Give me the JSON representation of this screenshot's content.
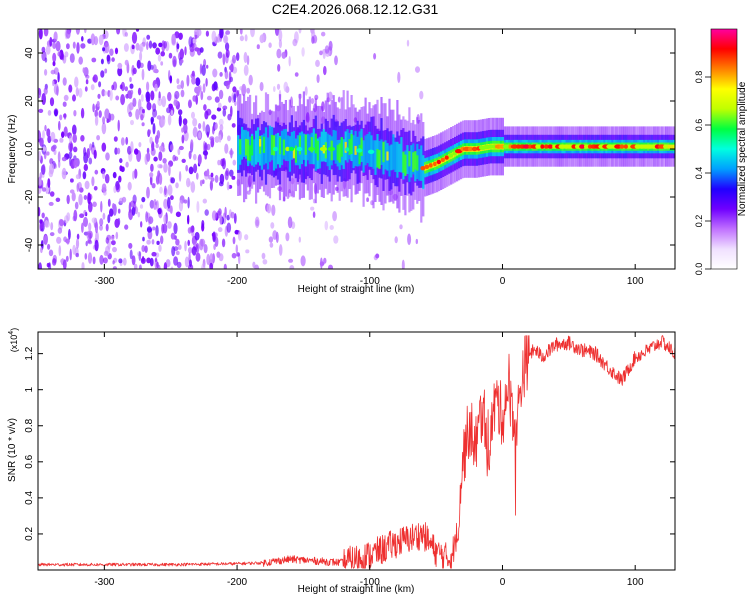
{
  "title": "C2E4.2026.068.12.12.G31",
  "chart_data": [
    {
      "type": "heatmap",
      "xlabel": "Height of straight line (km)",
      "ylabel": "Frequency (Hz)",
      "xlim": [
        -350,
        130
      ],
      "ylim": [
        -50,
        50
      ],
      "x_ticks": [
        -300,
        -200,
        -100,
        0,
        100
      ],
      "y_ticks": [
        -40,
        -20,
        0,
        20,
        40
      ],
      "colorbar": {
        "label": "Normalized spectral amplitude",
        "range": [
          0,
          1
        ],
        "ticks": [
          0.0,
          0.2,
          0.4,
          0.6,
          0.8
        ],
        "colors": [
          "#ffffff",
          "#f0e0ff",
          "#c070ff",
          "#7000ff",
          "#2000ff",
          "#00a0ff",
          "#00ffe0",
          "#00ff40",
          "#c0ff00",
          "#ffff00",
          "#ff8000",
          "#ff0000",
          "#ff00a0"
        ]
      },
      "ridge": {
        "x": [
          -200,
          -180,
          -160,
          -140,
          -120,
          -100,
          -80,
          -60,
          -50,
          -40,
          -30,
          -20,
          -10,
          0,
          20,
          50,
          80,
          100,
          130
        ],
        "y": [
          1,
          0,
          0,
          0,
          0,
          -1,
          -4,
          -8,
          -6,
          -3,
          0,
          0,
          1,
          1,
          1,
          1,
          1,
          1,
          1
        ]
      }
    },
    {
      "type": "line",
      "xlabel": "Height of straight line (km)",
      "ylabel": "SNR (10 * v/v)",
      "y_multiplier": "(x10",
      "y_multiplier_exp": "4",
      "y_multiplier_close": ")",
      "xlim": [
        -350,
        130
      ],
      "ylim": [
        0,
        1.32
      ],
      "x_ticks": [
        -300,
        -200,
        -100,
        0,
        100
      ],
      "y_ticks": [
        0.2,
        0.4,
        0.6,
        0.8,
        1.0,
        1.2
      ],
      "series": [
        {
          "name": "SNR",
          "color": "#ee3030",
          "x": [
            -350,
            -300,
            -250,
            -200,
            -180,
            -160,
            -140,
            -120,
            -100,
            -80,
            -60,
            -50,
            -40,
            -35,
            -30,
            -25,
            -20,
            -15,
            -10,
            -5,
            0,
            5,
            10,
            15,
            20,
            25,
            30,
            40,
            50,
            60,
            70,
            80,
            90,
            100,
            110,
            120,
            130
          ],
          "y": [
            0.03,
            0.03,
            0.03,
            0.035,
            0.04,
            0.06,
            0.05,
            0.04,
            0.08,
            0.15,
            0.2,
            0.1,
            0.06,
            0.15,
            0.6,
            0.8,
            0.7,
            0.9,
            0.7,
            0.95,
            0.85,
            1.05,
            0.75,
            1.1,
            1.2,
            1.22,
            1.18,
            1.25,
            1.26,
            1.22,
            1.2,
            1.12,
            1.05,
            1.18,
            1.22,
            1.27,
            1.2
          ]
        }
      ]
    }
  ]
}
